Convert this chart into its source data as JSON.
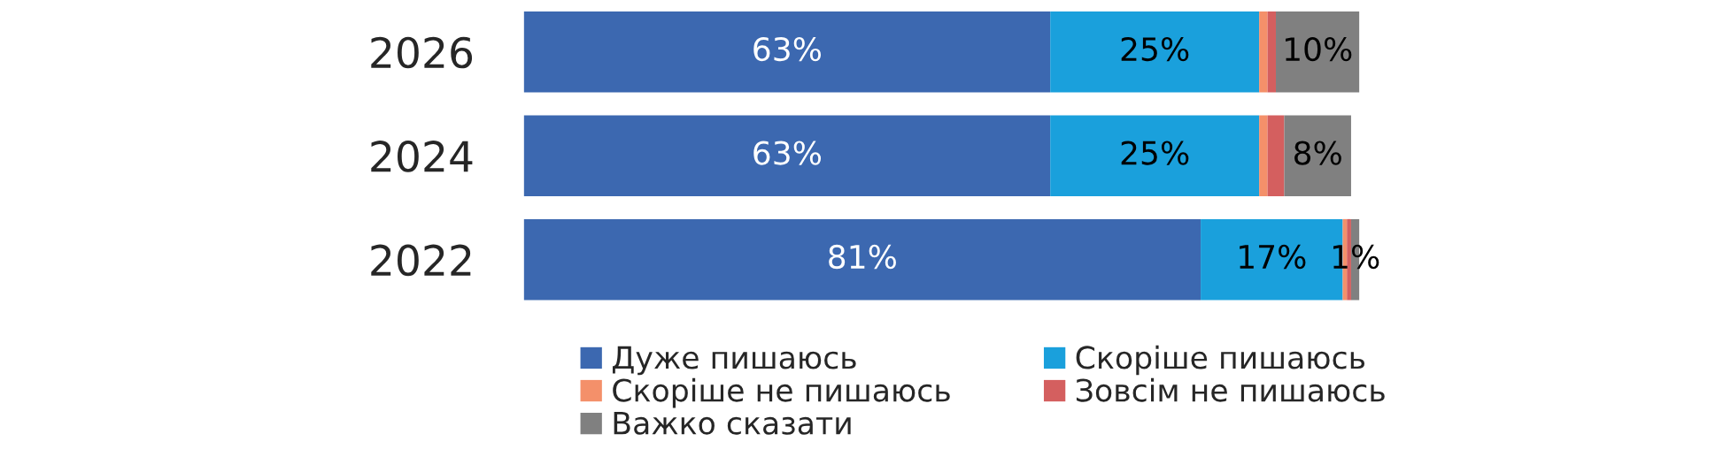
{
  "chart_data": {
    "type": "bar",
    "orientation": "horizontal",
    "stacked": true,
    "categories": [
      "2026",
      "2024",
      "2022"
    ],
    "series": [
      {
        "name": "Дуже пишаюсь",
        "color": "#3c68b0",
        "values": [
          63,
          63,
          81
        ],
        "value_labels": [
          "63%",
          "63%",
          "81%"
        ]
      },
      {
        "name": "Скоріше пишаюсь",
        "color": "#1aa0dc",
        "values": [
          25,
          25,
          17
        ],
        "value_labels": [
          "25%",
          "25%",
          "17%"
        ]
      },
      {
        "name": "Скоріше не пишаюсь",
        "color": "#f4906a",
        "values": [
          1,
          1,
          0.5
        ],
        "value_labels": [
          null,
          null,
          null
        ]
      },
      {
        "name": "Зовсім не пишаюсь",
        "color": "#d45f5f",
        "values": [
          1,
          2,
          0.5
        ],
        "value_labels": [
          null,
          null,
          null
        ]
      },
      {
        "name": "Важко сказати",
        "color": "#808080",
        "values": [
          10,
          8,
          1
        ],
        "value_labels": [
          "10%",
          "8%",
          "1%"
        ]
      }
    ],
    "legend": "bottom",
    "grid": false
  }
}
